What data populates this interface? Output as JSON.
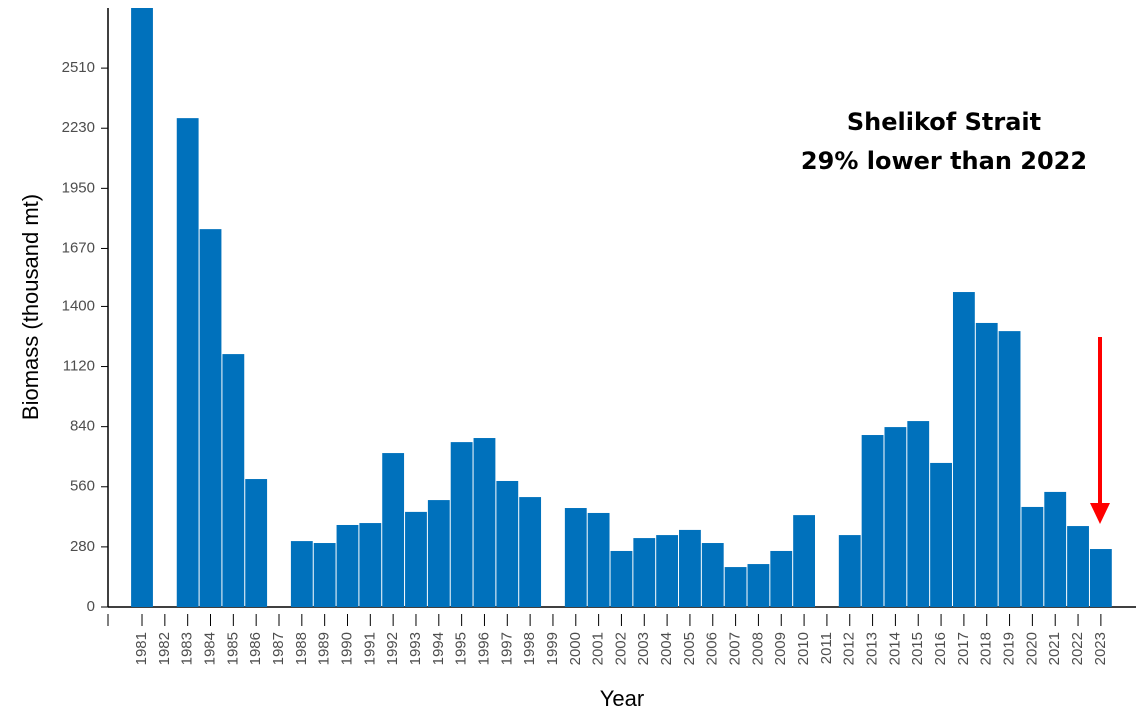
{
  "chart_data": {
    "type": "bar",
    "xlabel": "Year",
    "ylabel": "Biomass (thousand mt)",
    "annotations": [
      "Shelikof Strait",
      "29% lower than 2022"
    ],
    "categories": [
      "1981",
      "1982",
      "1983",
      "1984",
      "1985",
      "1986",
      "1987",
      "1988",
      "1989",
      "1990",
      "1991",
      "1992",
      "1993",
      "1994",
      "1995",
      "1996",
      "1997",
      "1998",
      "1999",
      "2000",
      "2001",
      "2002",
      "2003",
      "2004",
      "2005",
      "2006",
      "2007",
      "2008",
      "2009",
      "2010",
      "2011",
      "2012",
      "2013",
      "2014",
      "2015",
      "2016",
      "2017",
      "2018",
      "2019",
      "2020",
      "2021",
      "2022",
      "2023"
    ],
    "values": [
      2790,
      null,
      2277,
      1760,
      1178,
      596,
      null,
      307,
      298,
      382,
      391,
      717,
      443,
      498,
      768,
      787,
      587,
      512,
      null,
      461,
      438,
      261,
      321,
      335,
      359,
      298,
      186,
      200,
      261,
      428,
      null,
      335,
      801,
      838,
      866,
      671,
      1467,
      1323,
      1285,
      466,
      536,
      377,
      270
    ],
    "color": "#0071bc",
    "ylim": [
      0,
      2790
    ],
    "yticks": [
      0,
      280,
      560,
      840,
      1120,
      1400,
      1670,
      1950,
      2230,
      2510
    ],
    "grid": false
  }
}
